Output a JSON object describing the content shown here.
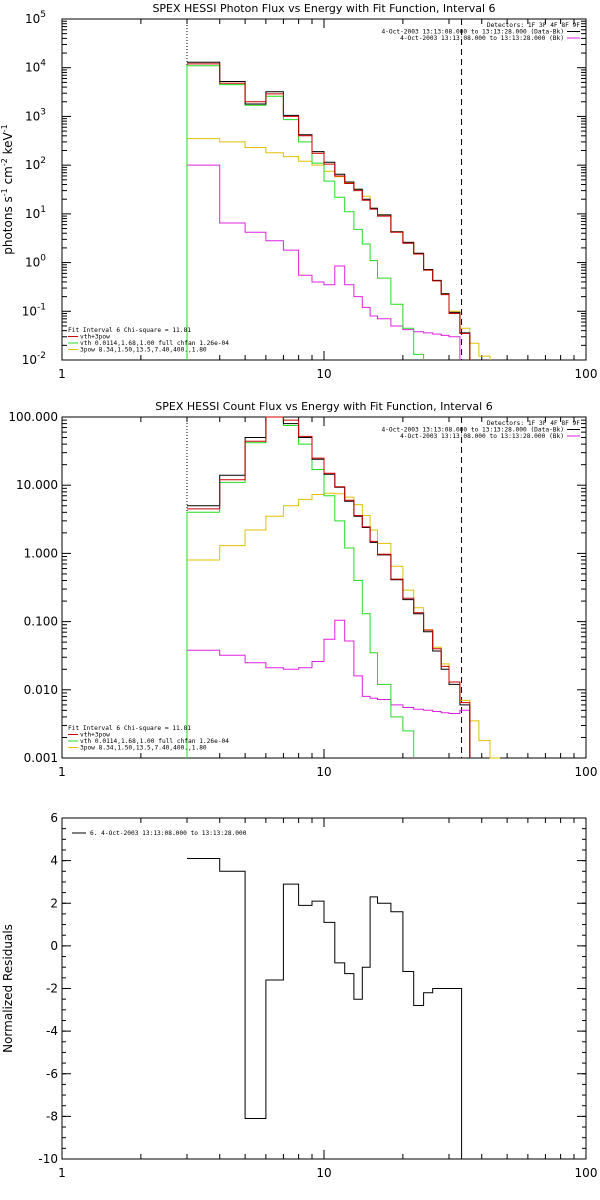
{
  "colors": {
    "background": "#ffffff",
    "axis": "#000000",
    "data": "#000000",
    "total": "#cc0000",
    "thermal": "#22dd22",
    "nonthermal": "#e0c000",
    "background_model": "#e020e0"
  },
  "chart_data": [
    {
      "type": "line",
      "step": true,
      "title": "SPEX HESSI Photon Flux vs Energy with Fit Function, Interval 6",
      "xlabel": "",
      "ylabel_parts": [
        "photons s",
        "-1",
        " cm",
        "-2",
        " keV",
        "-1"
      ],
      "xscale": "log",
      "yscale": "log",
      "xlim": [
        1,
        100
      ],
      "ylim": [
        0.01,
        100000
      ],
      "x_ticks": [
        "1",
        "10",
        "100"
      ],
      "y_ticks": [
        {
          "base": "10",
          "exp": "-2"
        },
        {
          "base": "10",
          "exp": "-1"
        },
        {
          "base": "10",
          "exp": "0"
        },
        {
          "base": "10",
          "exp": "1"
        },
        {
          "base": "10",
          "exp": "2"
        },
        {
          "base": "10",
          "exp": "3"
        },
        {
          "base": "10",
          "exp": "4"
        },
        {
          "base": "10",
          "exp": "5"
        }
      ],
      "vlines": [
        {
          "x": 3.0,
          "style": "dotted"
        },
        {
          "x": 33.5,
          "style": "dashed"
        }
      ],
      "legend_right": [
        "Detectors: 1F 3F 4F 8F 9F",
        "4-Oct-2003 13:13:08.000 to 13:13:28.000 (Data-Bk)",
        "4-Oct-2003 13:13:08.000 to 13:13:28.000 (Bk)"
      ],
      "legend_left": [
        "Fit Interval 6   Chi-square = 11.81",
        "vth+3pow",
        "vth 0.0114,1.68,1.00  full chfan 1.26e-04",
        "3pow 8.34,1.50,13.5,7.40,400.,1.80"
      ],
      "edges": [
        3,
        4,
        5,
        6,
        7,
        8,
        9,
        10,
        11,
        12,
        13,
        14,
        15,
        16,
        18,
        20,
        22,
        24,
        26,
        28,
        30,
        33,
        36,
        39,
        43,
        47
      ],
      "series": [
        {
          "role": "data",
          "values": [
            13000,
            5200,
            1800,
            3200,
            1050,
            420,
            190,
            115,
            65,
            45,
            32,
            20,
            13,
            9.5,
            4.3,
            2.6,
            1.55,
            0.72,
            0.43,
            0.23,
            0.095,
            0.036,
            null,
            null,
            null
          ]
        },
        {
          "role": "total",
          "values": [
            12000,
            4800,
            2000,
            2900,
            1000,
            400,
            175,
            105,
            60,
            42,
            30,
            19,
            12.5,
            9,
            4.2,
            2.5,
            1.5,
            0.7,
            0.42,
            0.22,
            0.09,
            0.035,
            null,
            null,
            null
          ]
        },
        {
          "role": "thermal",
          "values": [
            11000,
            4500,
            1700,
            2600,
            860,
            300,
            110,
            47,
            22,
            11,
            4.8,
            2.4,
            1.1,
            0.48,
            0.14,
            0.045,
            0.013,
            null,
            null,
            null,
            null,
            null,
            null,
            null,
            null
          ]
        },
        {
          "role": "nonthermal",
          "values": [
            350,
            300,
            230,
            180,
            150,
            120,
            100,
            75,
            58,
            44,
            32,
            23,
            13,
            9.5,
            4.3,
            2.6,
            1.5,
            0.7,
            0.42,
            0.23,
            0.1,
            0.045,
            0.022,
            0.012,
            null
          ]
        },
        {
          "role": "background_model",
          "values": [
            100,
            6.5,
            4.2,
            2.8,
            1.8,
            0.55,
            0.4,
            0.35,
            0.85,
            0.35,
            0.2,
            0.12,
            0.08,
            0.07,
            0.05,
            0.042,
            0.038,
            0.036,
            0.034,
            0.032,
            0.03,
            null,
            null,
            null,
            null
          ]
        }
      ]
    },
    {
      "type": "line",
      "step": true,
      "title": "SPEX HESSI Count Flux vs Energy with Fit Function, Interval 6",
      "xlabel": "",
      "ylabel_parts": [],
      "xscale": "log",
      "yscale": "log",
      "xlim": [
        1,
        100
      ],
      "ylim": [
        0.001,
        100
      ],
      "x_ticks": [
        "1",
        "10",
        "100"
      ],
      "y_ticks": [
        {
          "base": "0.001",
          "exp": ""
        },
        {
          "base": "0.010",
          "exp": ""
        },
        {
          "base": "0.100",
          "exp": ""
        },
        {
          "base": "1.000",
          "exp": ""
        },
        {
          "base": "10.000",
          "exp": ""
        },
        {
          "base": "100.000",
          "exp": ""
        }
      ],
      "vlines": [
        {
          "x": 3.0,
          "style": "dotted"
        },
        {
          "x": 33.5,
          "style": "dashed"
        }
      ],
      "legend_right": [
        "Detectors: 1F 3F 4F 8F 9F",
        "4-Oct-2003 13:13:08.000 to 13:13:28.000 (Data-Bk)",
        "4-Oct-2003 13:13:08.000 to 13:13:28.000 (Bk)"
      ],
      "legend_left": [
        "Fit Interval 6   Chi-square = 11.81",
        "vth+3pow",
        "vth 0.0114,1.68,1.00  full chfan 1.26e-04",
        "3pow 8.34,1.50,13.5,7.40,400.,1.80"
      ],
      "edges": [
        3,
        4,
        5,
        6,
        7,
        8,
        9,
        10,
        11,
        12,
        13,
        14,
        15,
        16,
        18,
        20,
        22,
        24,
        26,
        28,
        30,
        33,
        36,
        39,
        43,
        47
      ],
      "series": [
        {
          "role": "data",
          "values": [
            5.0,
            14.0,
            50.0,
            100.0,
            80.0,
            50.0,
            24.0,
            14.5,
            9.3,
            5.8,
            3.5,
            2.4,
            1.45,
            0.95,
            0.41,
            0.21,
            0.13,
            0.071,
            0.037,
            0.02,
            0.012,
            0.006,
            null,
            null,
            null
          ]
        },
        {
          "role": "total",
          "values": [
            4.5,
            12.0,
            44.0,
            105.0,
            90.0,
            52.0,
            25.0,
            15.0,
            9.5,
            6.0,
            3.6,
            2.45,
            1.5,
            0.97,
            0.42,
            0.22,
            0.135,
            0.075,
            0.04,
            0.022,
            0.013,
            0.0065,
            null,
            null,
            null
          ]
        },
        {
          "role": "thermal",
          "values": [
            4.0,
            11.0,
            42.0,
            100.0,
            75.0,
            40.0,
            17.0,
            7.0,
            3.0,
            1.2,
            0.4,
            0.13,
            0.035,
            0.012,
            0.004,
            0.0025,
            null,
            null,
            null,
            null,
            null,
            null,
            null,
            null,
            null
          ]
        },
        {
          "role": "nonthermal",
          "values": [
            0.8,
            1.3,
            2.2,
            3.5,
            5.0,
            6.2,
            7.3,
            7.6,
            7.5,
            6.7,
            5.2,
            3.6,
            2.2,
            1.4,
            0.65,
            0.29,
            0.16,
            0.076,
            0.042,
            0.024,
            0.013,
            0.007,
            0.0035,
            0.0018,
            0.001
          ]
        },
        {
          "role": "background_model",
          "values": [
            0.038,
            0.032,
            0.025,
            0.021,
            0.02,
            0.021,
            0.026,
            0.055,
            0.105,
            0.052,
            0.016,
            0.008,
            0.0075,
            0.0072,
            0.006,
            0.0055,
            0.0052,
            0.005,
            0.0048,
            0.0046,
            0.0045,
            0.005,
            null,
            null,
            null
          ]
        }
      ]
    },
    {
      "type": "line",
      "step": true,
      "title": "",
      "xlabel": "",
      "ylabel": "Normalized Residuals",
      "xscale": "log",
      "yscale": "linear",
      "xlim": [
        1,
        100
      ],
      "ylim": [
        -10,
        6
      ],
      "x_ticks": [
        "1",
        "10",
        "100"
      ],
      "y_ticks": [
        "-10",
        "-8",
        "-6",
        "-4",
        "-2",
        "0",
        "2",
        "4",
        "6"
      ],
      "legend": [
        "6.  4-Oct-2003 13:13:08.000 to 13:13:28.000"
      ],
      "edges": [
        3,
        4,
        5,
        6,
        7,
        8,
        9,
        10,
        11,
        12,
        13,
        14,
        15,
        16,
        18,
        20,
        22,
        24,
        26,
        28,
        30,
        33.5
      ],
      "series": [
        {
          "role": "data",
          "values": [
            4.1,
            3.5,
            -8.1,
            -1.6,
            2.9,
            1.9,
            2.1,
            1.1,
            -0.8,
            -1.3,
            -2.5,
            -1.0,
            2.3,
            2.0,
            1.6,
            -1.2,
            -2.8,
            -2.2,
            -2.0,
            -2.0,
            -2.0
          ]
        }
      ]
    }
  ]
}
